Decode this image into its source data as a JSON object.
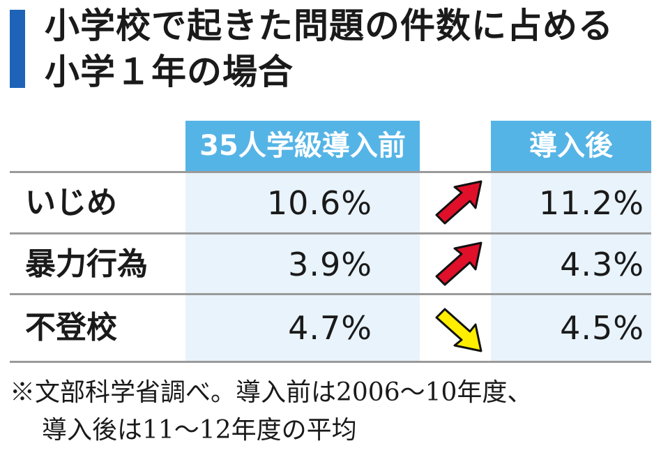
{
  "title": {
    "line1": "小学校で起きた問題の件数に占める",
    "line2": "小学１年の場合"
  },
  "colors": {
    "accent_bar": "#1f63b8",
    "header_bg": "#55b4e6",
    "column_bg": "#e8f3fb",
    "up_arrow": "#e0102a",
    "down_arrow": "#ffee00"
  },
  "chart_data": {
    "type": "table",
    "columns": [
      "35人学級導入前",
      "導入後"
    ],
    "rows": [
      {
        "label": "いじめ",
        "before": "10.6%",
        "after": "11.2%",
        "trend": "up"
      },
      {
        "label": "暴力行為",
        "before": "3.9%",
        "after": "4.3%",
        "trend": "up"
      },
      {
        "label": "不登校",
        "before": "4.7%",
        "after": "4.5%",
        "trend": "down"
      }
    ]
  },
  "note": {
    "line1": "※文部科学省調べ。導入前は2006〜10年度、",
    "line2": "導入後は11〜12年度の平均"
  }
}
